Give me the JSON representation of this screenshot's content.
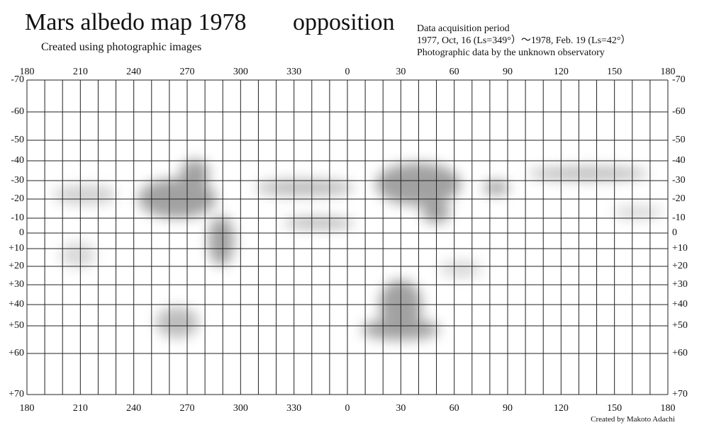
{
  "header": {
    "title": "Mars albedo map 1978",
    "title_suffix": "opposition",
    "subtitle": "Created using photographic images",
    "info": [
      "Data acquisition period",
      "1977, Oct, 16 (Ls=349°）～1978, Feb. 19 (Ls=42°）",
      "Photographic data by the unknown observatory"
    ]
  },
  "map": {
    "longitude_labels": [
      "180",
      "210",
      "240",
      "270",
      "300",
      "330",
      "0",
      "30",
      "60",
      "90",
      "120",
      "150",
      "180"
    ],
    "latitude_labels": [
      "-70",
      "-60",
      "-50",
      "-40",
      "-30",
      "-20",
      "-10",
      "0",
      "+10",
      "+20",
      "+30",
      "+40",
      "+50",
      "+60",
      "+70"
    ]
  },
  "credit": "Created by Makoto Adachi"
}
